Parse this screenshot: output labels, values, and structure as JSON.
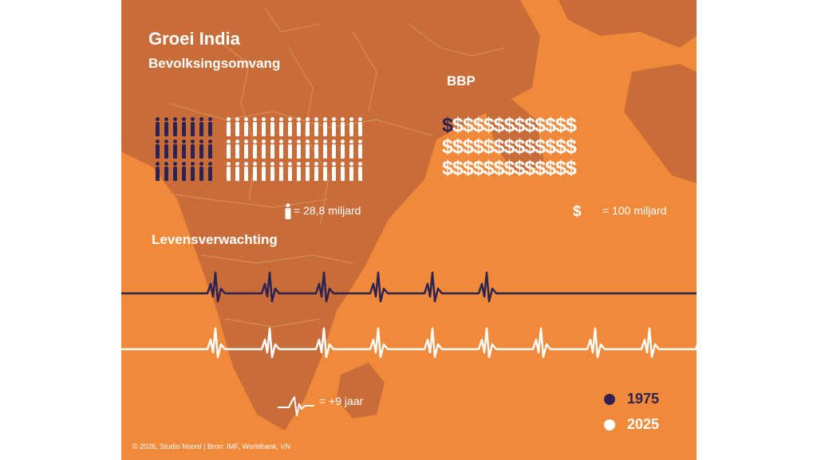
{
  "title": "Groei India",
  "population": {
    "label": "Bevolksingsomvang",
    "icons_1975": 21,
    "icons_2025": 48,
    "legend": "= 28,8 miljard"
  },
  "gdp": {
    "label": "BBP",
    "icons_1975": 1,
    "icons_2025": 38,
    "legend": "= 100 miljard",
    "icon": "$"
  },
  "life_expectancy": {
    "label": "Levensverwachting",
    "beats_1975": 6,
    "beats_2025": 10,
    "legend": "= +9 jaar"
  },
  "legend": {
    "year_1": "1975",
    "year_2": "2025"
  },
  "colors": {
    "background": "#f08a3a",
    "map": "#c86d3a",
    "dark": "#2c2352",
    "light": "#ffffff"
  },
  "footer": "© 2026, Studio Noord | Bron: IMF, Worldbank, VN"
}
